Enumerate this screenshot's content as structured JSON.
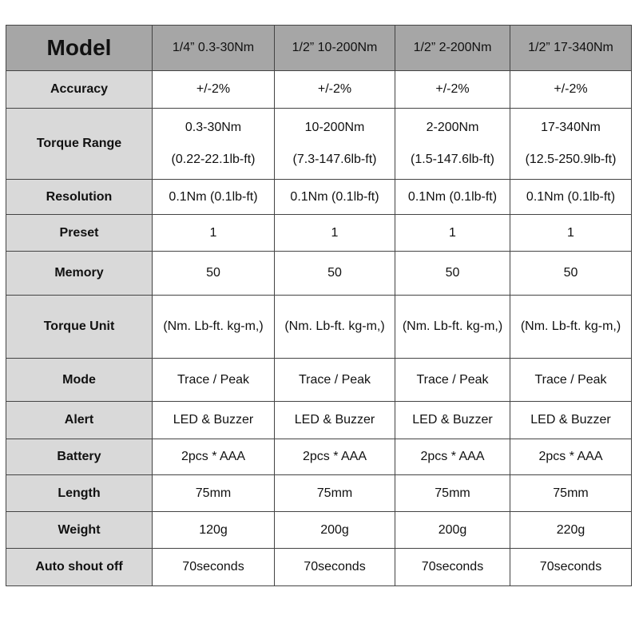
{
  "header": {
    "label": "Model",
    "models": [
      "1/4” 0.3-30Nm",
      "1/2” 10-200Nm",
      "1/2” 2-200Nm",
      "1/2” 17-340Nm"
    ]
  },
  "rows": [
    {
      "label": "Accuracy",
      "values": [
        "+/-2%",
        "+/-2%",
        "+/-2%",
        "+/-2%"
      ]
    },
    {
      "label": "Torque Range",
      "values": [
        "0.3-30Nm",
        "10-200Nm",
        "2-200Nm",
        "17-340Nm"
      ],
      "values2": [
        "(0.22-22.1lb-ft)",
        "(7.3-147.6lb-ft)",
        "(1.5-147.6lb-ft)",
        "(12.5-250.9lb-ft)"
      ]
    },
    {
      "label": "Resolution",
      "values": [
        "0.1Nm (0.1lb-ft)",
        "0.1Nm (0.1lb-ft)",
        "0.1Nm (0.1lb-ft)",
        "0.1Nm (0.1lb-ft)"
      ]
    },
    {
      "label": "Preset",
      "values": [
        "1",
        "1",
        "1",
        "1"
      ]
    },
    {
      "label": "Memory",
      "values": [
        "50",
        "50",
        "50",
        "50"
      ]
    },
    {
      "label": "Torque Unit",
      "values": [
        "(Nm. Lb-ft. kg-m,)",
        "(Nm. Lb-ft. kg-m,)",
        "(Nm. Lb-ft. kg-m,)",
        "(Nm. Lb-ft. kg-m,)"
      ]
    },
    {
      "label": "Mode",
      "values": [
        "Trace / Peak",
        "Trace / Peak",
        "Trace / Peak",
        "Trace / Peak"
      ]
    },
    {
      "label": "Alert",
      "values": [
        "LED & Buzzer",
        "LED & Buzzer",
        "LED & Buzzer",
        "LED & Buzzer"
      ]
    },
    {
      "label": "Battery",
      "values": [
        "2pcs * AAA",
        "2pcs * AAA",
        "2pcs * AAA",
        "2pcs * AAA"
      ]
    },
    {
      "label": "Length",
      "values": [
        "75mm",
        "75mm",
        "75mm",
        "75mm"
      ]
    },
    {
      "label": "Weight",
      "values": [
        "120g",
        "200g",
        "200g",
        "220g"
      ]
    },
    {
      "label": "Auto shout off",
      "values": [
        "70seconds",
        "70seconds",
        "70seconds",
        "70seconds"
      ]
    }
  ]
}
